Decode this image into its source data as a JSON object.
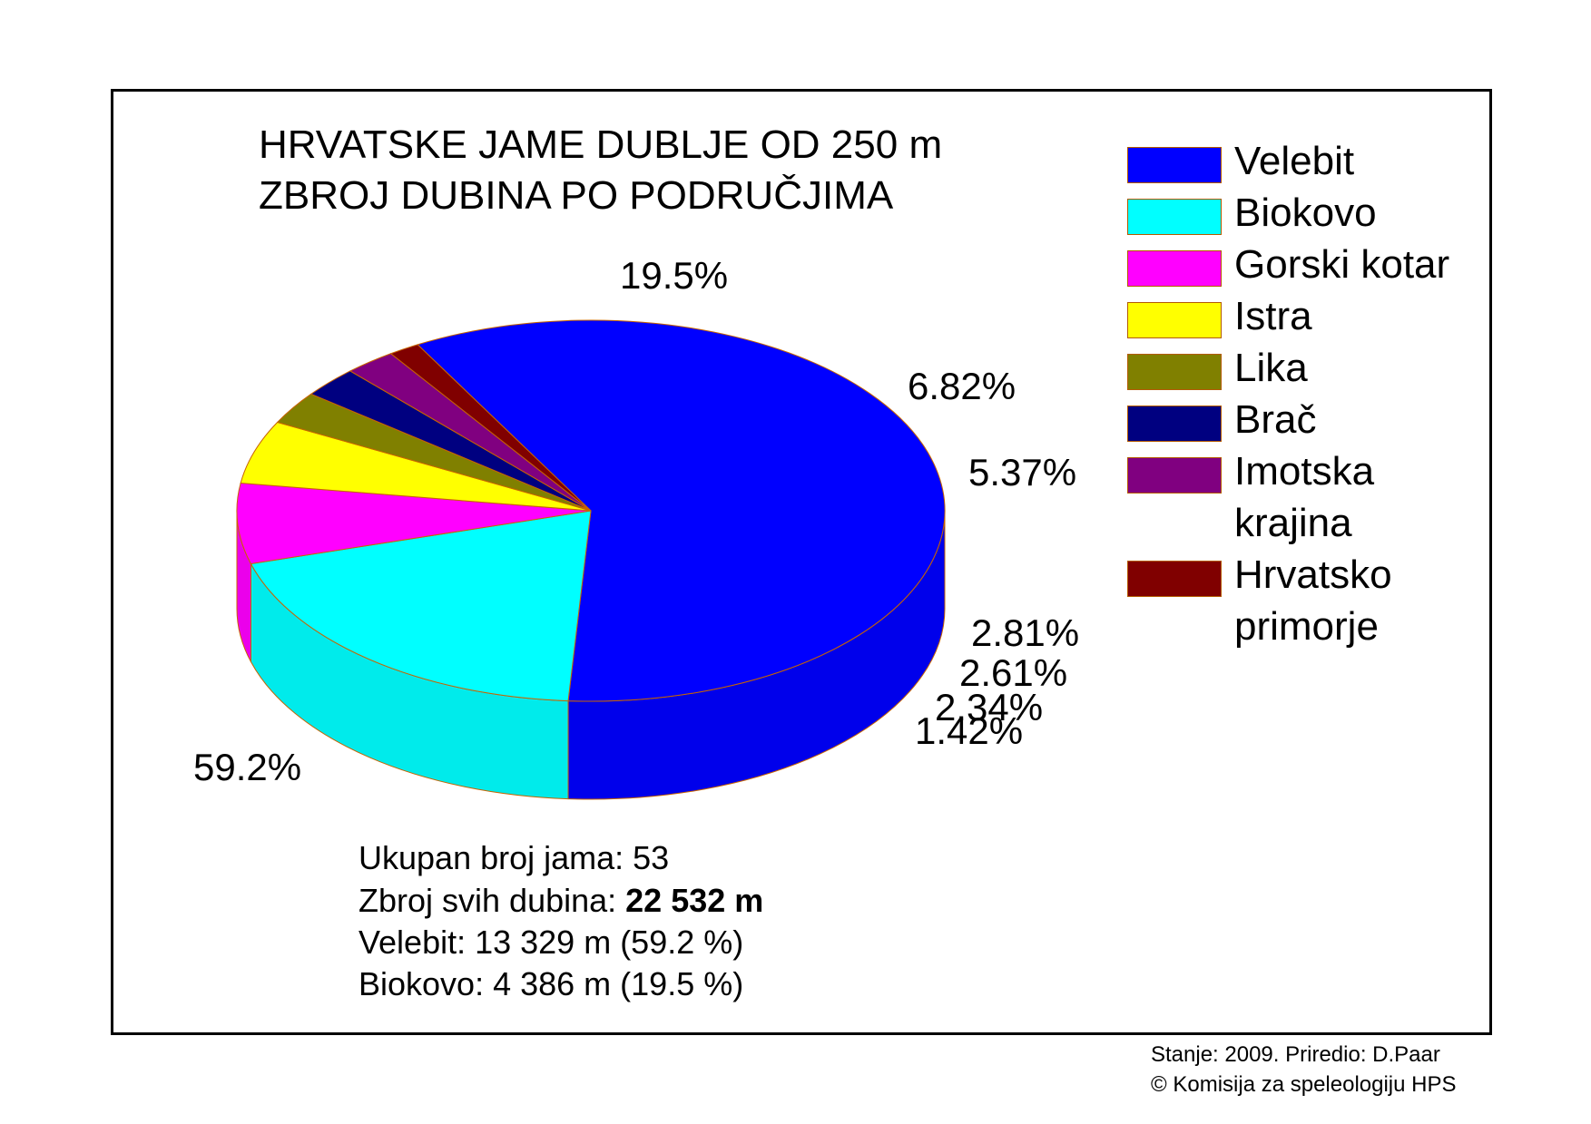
{
  "chart_data": {
    "type": "pie",
    "title": "HRVATSKE JAME DUBLJE OD 250 m",
    "subtitle": "ZBROJ DUBINA PO PODRUČJIMA",
    "legend_position": "right",
    "slices": [
      {
        "name": "Velebit",
        "value": 59.2,
        "label": "59.2%",
        "color": "#0000ff"
      },
      {
        "name": "Biokovo",
        "value": 19.5,
        "label": "19.5%",
        "color": "#00ffff"
      },
      {
        "name": "Gorski kotar",
        "value": 6.82,
        "label": "6.82%",
        "color": "#ff00ff"
      },
      {
        "name": "Istra",
        "value": 5.37,
        "label": "5.37%",
        "color": "#ffff00"
      },
      {
        "name": "Lika",
        "value": 2.81,
        "label": "2.81%",
        "color": "#808000"
      },
      {
        "name": "Brač",
        "value": 2.61,
        "label": "2.61%",
        "color": "#000080"
      },
      {
        "name": "Imotska krajina",
        "value": 2.34,
        "label": "2.34%",
        "color": "#800080"
      },
      {
        "name": "Hrvatsko primorje",
        "value": 1.42,
        "label": "1.42%",
        "color": "#800000"
      }
    ]
  },
  "legend": [
    {
      "lines": [
        "Velebit"
      ],
      "color": "#0000ff"
    },
    {
      "lines": [
        "Biokovo"
      ],
      "color": "#00ffff"
    },
    {
      "lines": [
        "Gorski kotar"
      ],
      "color": "#ff00ff"
    },
    {
      "lines": [
        "Istra"
      ],
      "color": "#ffff00"
    },
    {
      "lines": [
        "Lika"
      ],
      "color": "#808000"
    },
    {
      "lines": [
        "Brač"
      ],
      "color": "#000080"
    },
    {
      "lines": [
        "Imotska",
        "krajina"
      ],
      "color": "#800080"
    },
    {
      "lines": [
        "Hrvatsko",
        "primorje"
      ],
      "color": "#800000"
    }
  ],
  "info": {
    "count_label": "Ukupan broj jama: 53",
    "total_label": "Zbroj svih dubina: ",
    "total_value": "22 532 m",
    "velebit_line": "Velebit: 13 329 m  (59.2 %)",
    "biokovo_line": "Biokovo: 4 386 m  (19.5 %)"
  },
  "footer": {
    "line1": "Stanje: 2009.  Priredio: D.Paar",
    "line2": "© Komisija za speleologiju HPS"
  }
}
